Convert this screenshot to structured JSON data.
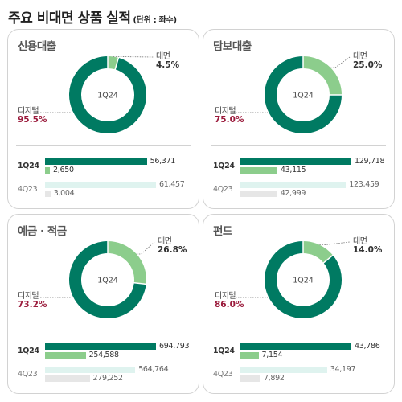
{
  "header": {
    "title": "주요 비대면 상품 실적",
    "unit": "(단위 : 좌수)"
  },
  "colors": {
    "digital": "#007a62",
    "face": "#8ccd8c",
    "digital_prev": "#dff3ef",
    "face_prev": "#e6e6e6",
    "digital_pct": "#9b1b3c"
  },
  "chart_data": [
    {
      "type": "pie",
      "title": "신용대출",
      "center": "1Q24",
      "slices": [
        {
          "name": "대면",
          "value": 4.5,
          "label": "4.5%"
        },
        {
          "name": "디지털",
          "value": 95.5,
          "label": "95.5%"
        }
      ],
      "bars": {
        "type": "bar",
        "rows": [
          {
            "period": "1Q24",
            "digital": 56371,
            "digital_label": "56,371",
            "face": 2650,
            "face_label": "2,650"
          },
          {
            "period": "4Q23",
            "digital": 61457,
            "digital_label": "61,457",
            "face": 3004,
            "face_label": "3,004"
          }
        ]
      }
    },
    {
      "type": "pie",
      "title": "담보대출",
      "center": "1Q24",
      "slices": [
        {
          "name": "대면",
          "value": 25.0,
          "label": "25.0%"
        },
        {
          "name": "디지털",
          "value": 75.0,
          "label": "75.0%"
        }
      ],
      "bars": {
        "type": "bar",
        "rows": [
          {
            "period": "1Q24",
            "digital": 129718,
            "digital_label": "129,718",
            "face": 43115,
            "face_label": "43,115"
          },
          {
            "period": "4Q23",
            "digital": 123459,
            "digital_label": "123,459",
            "face": 42999,
            "face_label": "42,999"
          }
        ]
      }
    },
    {
      "type": "pie",
      "title": "예금 · 적금",
      "center": "1Q24",
      "slices": [
        {
          "name": "대면",
          "value": 26.8,
          "label": "26.8%"
        },
        {
          "name": "디지털",
          "value": 73.2,
          "label": "73.2%"
        }
      ],
      "bars": {
        "type": "bar",
        "rows": [
          {
            "period": "1Q24",
            "digital": 694793,
            "digital_label": "694,793",
            "face": 254588,
            "face_label": "254,588"
          },
          {
            "period": "4Q23",
            "digital": 564764,
            "digital_label": "564,764",
            "face": 279252,
            "face_label": "279,252"
          }
        ]
      }
    },
    {
      "type": "pie",
      "title": "펀드",
      "center": "1Q24",
      "slices": [
        {
          "name": "대면",
          "value": 14.0,
          "label": "14.0%"
        },
        {
          "name": "디지털",
          "value": 86.0,
          "label": "86.0%"
        }
      ],
      "bars": {
        "type": "bar",
        "rows": [
          {
            "period": "1Q24",
            "digital": 43786,
            "digital_label": "43,786",
            "face": 7154,
            "face_label": "7,154"
          },
          {
            "period": "4Q23",
            "digital": 34197,
            "digital_label": "34,197",
            "face": 7892,
            "face_label": "7,892"
          }
        ]
      }
    }
  ]
}
